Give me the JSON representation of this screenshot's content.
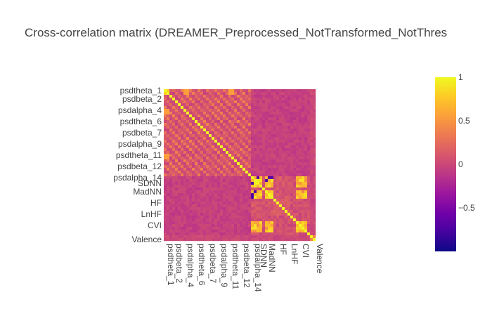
{
  "chart_data": {
    "type": "heatmap",
    "title": "Cross-correlation matrix (DREAMER_Preprocessed_NotTransformed_NotThres",
    "xlabel": "",
    "ylabel": "",
    "tick_labels": [
      "psdtheta_1",
      "psdbeta_2",
      "psdalpha_4",
      "psdtheta_6",
      "psdbeta_7",
      "psdalpha_9",
      "psdtheta_11",
      "psdbeta_12",
      "psdalpha_14",
      "SDNN",
      "MadNN",
      "HF",
      "LnHF",
      "CVI",
      "Valence"
    ],
    "n_variables": 54,
    "color_scale": {
      "name": "plasma",
      "min": -1,
      "max": 1,
      "stops": [
        "#0d0887",
        "#46039f",
        "#7201a8",
        "#9c179e",
        "#bd3786",
        "#d8576b",
        "#ed7953",
        "#fb9f3a",
        "#fdca26",
        "#f0f921"
      ],
      "ticks": [
        "1",
        "0.5",
        "0",
        "−0.5"
      ],
      "tick_values": [
        1,
        0.5,
        0,
        -0.5
      ]
    },
    "diagonal": 1.0,
    "baseline_correlation": 0.05,
    "notes_blocks": [
      {
        "rows": "psdtheta_1-psdbeta_2",
        "cols": "psdtheta_1-psdbeta_2",
        "value": 0.8
      },
      {
        "rows": "SDNN-MadNN",
        "cols": "SDNN-MadNN",
        "value": 0.85
      },
      {
        "rows": "CVI",
        "cols": "CVI",
        "value": 0.85
      }
    ]
  }
}
